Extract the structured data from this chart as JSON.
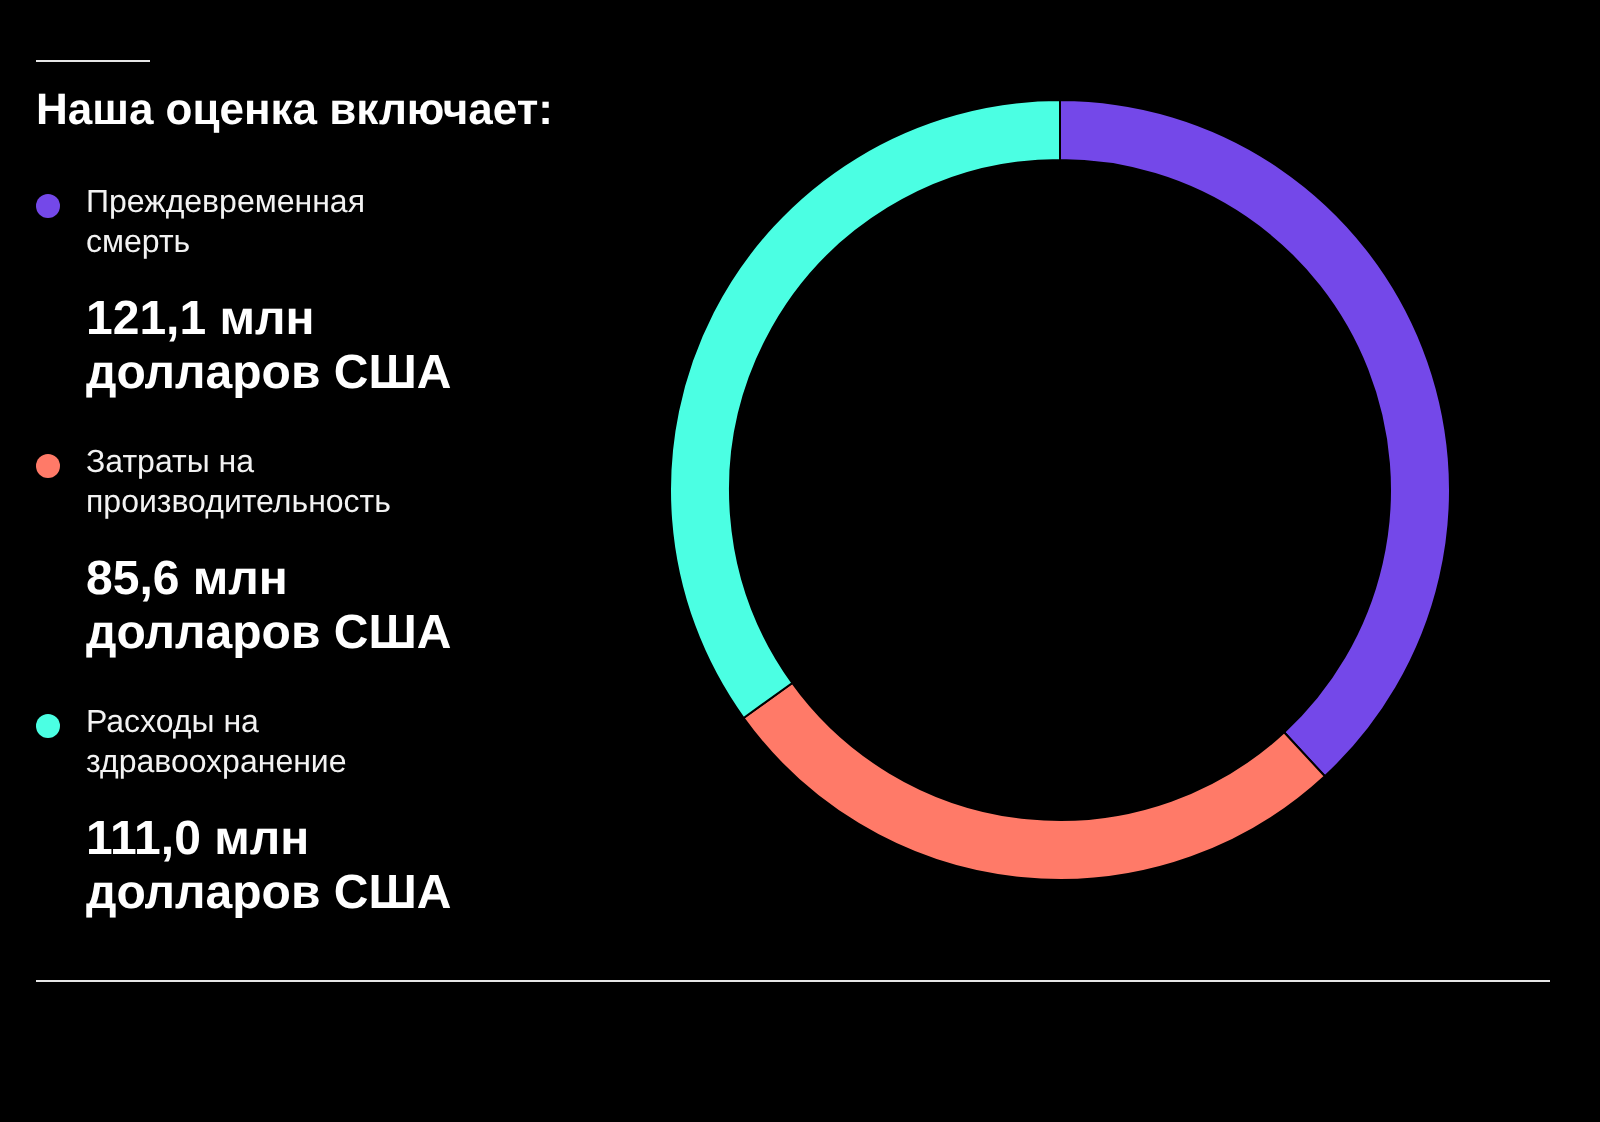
{
  "chart_data": {
    "type": "donut",
    "title": "Наша оценка включает:",
    "categories": [
      "Преждевременная смерть",
      "Затраты на производительность",
      "Расходы на здравоохранение"
    ],
    "values": [
      121.1,
      85.6,
      111.0
    ],
    "colors": [
      "#7448e9",
      "#ff7a68",
      "#4bffe3"
    ],
    "value_labels": [
      "121,1 млн долларов США",
      "85,6 млн долларов США",
      "111,0 млн долларов США"
    ],
    "legend": "left"
  }
}
